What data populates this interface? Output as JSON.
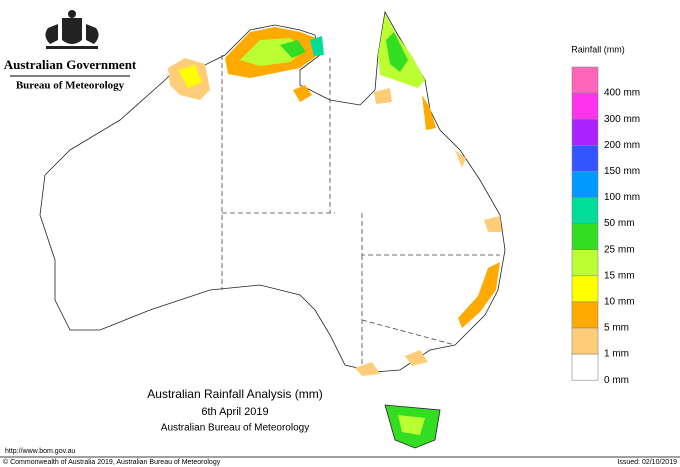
{
  "header": {
    "government": "Australian Government",
    "agency": "Bureau of Meteorology"
  },
  "map": {
    "title": "Australian Rainfall Analysis (mm)",
    "date": "6th April 2019",
    "source": "Australian Bureau of Meteorology"
  },
  "legend": {
    "title": "Rainfall (mm)",
    "colors": [
      "#ff66bb",
      "#ff33ee",
      "#aa22ff",
      "#3355ff",
      "#0099ff",
      "#00dd99",
      "#33dd22",
      "#bbff33",
      "#ffff00",
      "#ffaa00",
      "#ffcc77",
      "#ffffff"
    ],
    "labels": [
      "400 mm",
      "300 mm",
      "200 mm",
      "150 mm",
      "100 mm",
      "50 mm",
      "25 mm",
      "15 mm",
      "10 mm",
      "5 mm",
      "1 mm",
      "0 mm"
    ]
  },
  "footer": {
    "url": "http://www.bom.gov.au",
    "copyright": "© Commonwealth of Australia 2019, Australian Bureau of Meteorology",
    "issued": "Issued: 02/10/2019"
  }
}
